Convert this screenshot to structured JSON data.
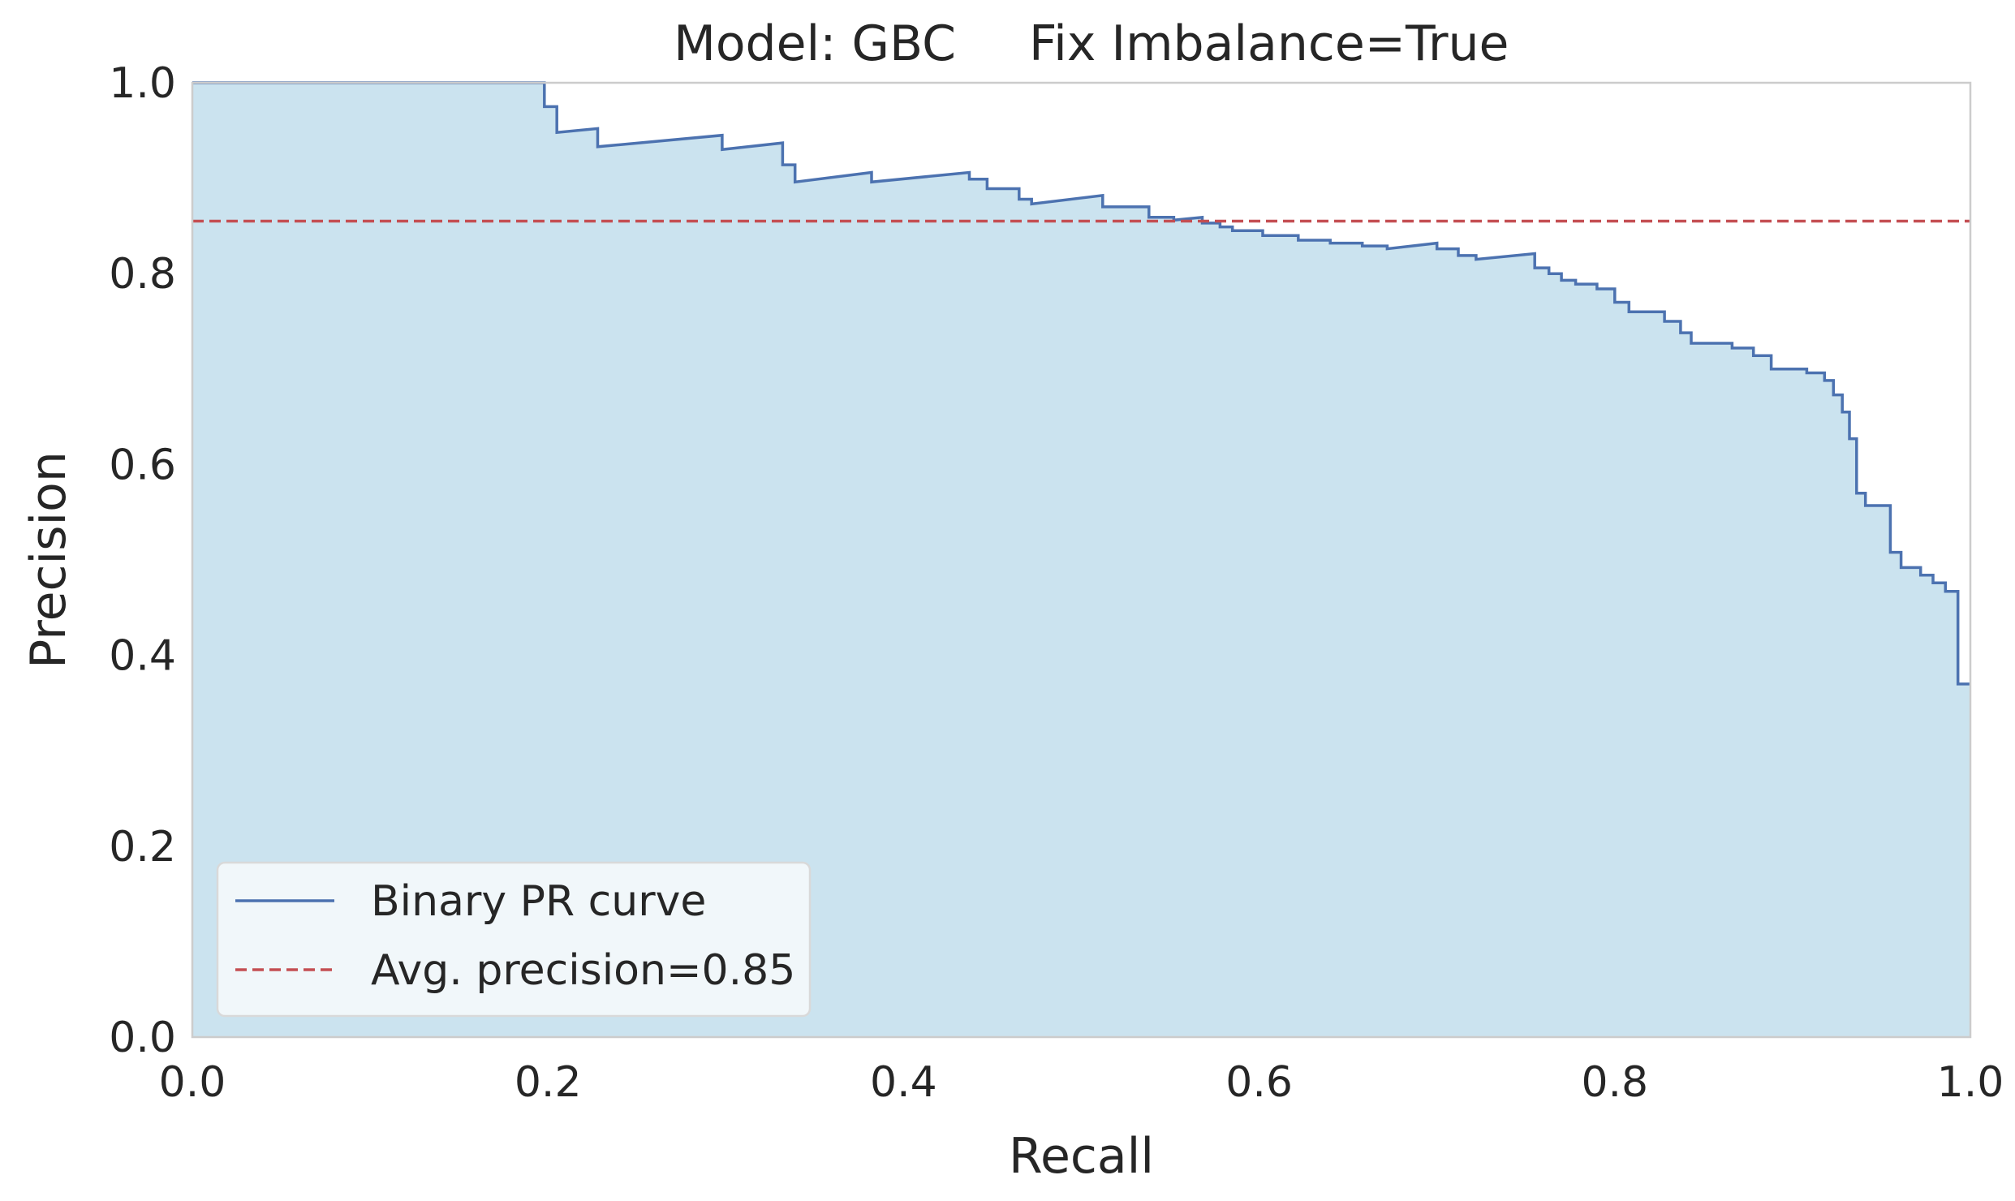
{
  "chart_data": {
    "type": "line",
    "title_parts": [
      "Model: GBC",
      "Fix Imbalance=True"
    ],
    "xlabel": "Recall",
    "ylabel": "Precision",
    "xlim": [
      0.0,
      1.0
    ],
    "ylim": [
      0.0,
      1.0
    ],
    "xticks": [
      "0.0",
      "0.2",
      "0.4",
      "0.6",
      "0.8",
      "1.0"
    ],
    "yticks": [
      "0.0",
      "0.2",
      "0.4",
      "0.6",
      "0.8",
      "1.0"
    ],
    "grid": false,
    "legend_position": "lower-left",
    "colors": {
      "curve": "#4c72b0",
      "fill": "#a6cee3",
      "avg_line": "#c44e52",
      "spine": "#cccccc",
      "legend_bg": "#f4f8fb",
      "legend_edge": "#d9d9d9"
    },
    "series": [
      {
        "name": "Binary PR curve",
        "step": "post",
        "points": [
          [
            0.0,
            1.0
          ],
          [
            0.198,
            1.0
          ],
          [
            0.198,
            0.975
          ],
          [
            0.205,
            0.975
          ],
          [
            0.205,
            0.948
          ],
          [
            0.228,
            0.952
          ],
          [
            0.228,
            0.933
          ],
          [
            0.298,
            0.945
          ],
          [
            0.298,
            0.93
          ],
          [
            0.332,
            0.937
          ],
          [
            0.332,
            0.914
          ],
          [
            0.339,
            0.914
          ],
          [
            0.339,
            0.896
          ],
          [
            0.382,
            0.906
          ],
          [
            0.382,
            0.896
          ],
          [
            0.437,
            0.906
          ],
          [
            0.437,
            0.899
          ],
          [
            0.447,
            0.899
          ],
          [
            0.447,
            0.889
          ],
          [
            0.465,
            0.889
          ],
          [
            0.465,
            0.878
          ],
          [
            0.472,
            0.878
          ],
          [
            0.472,
            0.873
          ],
          [
            0.512,
            0.882
          ],
          [
            0.512,
            0.87
          ],
          [
            0.538,
            0.87
          ],
          [
            0.538,
            0.859
          ],
          [
            0.552,
            0.859
          ],
          [
            0.552,
            0.856
          ],
          [
            0.568,
            0.859
          ],
          [
            0.568,
            0.853
          ],
          [
            0.578,
            0.853
          ],
          [
            0.578,
            0.849
          ],
          [
            0.585,
            0.849
          ],
          [
            0.585,
            0.845
          ],
          [
            0.602,
            0.845
          ],
          [
            0.602,
            0.84
          ],
          [
            0.622,
            0.84
          ],
          [
            0.622,
            0.835
          ],
          [
            0.64,
            0.835
          ],
          [
            0.64,
            0.832
          ],
          [
            0.658,
            0.832
          ],
          [
            0.658,
            0.829
          ],
          [
            0.672,
            0.829
          ],
          [
            0.672,
            0.826
          ],
          [
            0.7,
            0.832
          ],
          [
            0.7,
            0.826
          ],
          [
            0.712,
            0.826
          ],
          [
            0.712,
            0.819
          ],
          [
            0.722,
            0.819
          ],
          [
            0.722,
            0.815
          ],
          [
            0.755,
            0.821
          ],
          [
            0.755,
            0.806
          ],
          [
            0.763,
            0.806
          ],
          [
            0.763,
            0.8
          ],
          [
            0.77,
            0.8
          ],
          [
            0.77,
            0.793
          ],
          [
            0.778,
            0.793
          ],
          [
            0.778,
            0.789
          ],
          [
            0.79,
            0.789
          ],
          [
            0.79,
            0.784
          ],
          [
            0.8,
            0.784
          ],
          [
            0.8,
            0.77
          ],
          [
            0.808,
            0.77
          ],
          [
            0.808,
            0.76
          ],
          [
            0.828,
            0.76
          ],
          [
            0.828,
            0.75
          ],
          [
            0.837,
            0.75
          ],
          [
            0.837,
            0.738
          ],
          [
            0.843,
            0.738
          ],
          [
            0.843,
            0.727
          ],
          [
            0.866,
            0.727
          ],
          [
            0.866,
            0.722
          ],
          [
            0.878,
            0.722
          ],
          [
            0.878,
            0.714
          ],
          [
            0.888,
            0.714
          ],
          [
            0.888,
            0.7
          ],
          [
            0.908,
            0.7
          ],
          [
            0.908,
            0.696
          ],
          [
            0.918,
            0.696
          ],
          [
            0.918,
            0.688
          ],
          [
            0.923,
            0.688
          ],
          [
            0.923,
            0.673
          ],
          [
            0.928,
            0.673
          ],
          [
            0.928,
            0.655
          ],
          [
            0.932,
            0.655
          ],
          [
            0.932,
            0.627
          ],
          [
            0.936,
            0.627
          ],
          [
            0.936,
            0.57
          ],
          [
            0.941,
            0.57
          ],
          [
            0.941,
            0.557
          ],
          [
            0.955,
            0.557
          ],
          [
            0.955,
            0.508
          ],
          [
            0.961,
            0.508
          ],
          [
            0.961,
            0.492
          ],
          [
            0.972,
            0.492
          ],
          [
            0.972,
            0.484
          ],
          [
            0.979,
            0.484
          ],
          [
            0.979,
            0.476
          ],
          [
            0.986,
            0.476
          ],
          [
            0.986,
            0.467
          ],
          [
            0.993,
            0.467
          ],
          [
            0.993,
            0.37
          ],
          [
            1.0,
            0.37
          ]
        ]
      },
      {
        "name": "Avg. precision=0.85",
        "type": "hline",
        "y": 0.855
      }
    ]
  }
}
